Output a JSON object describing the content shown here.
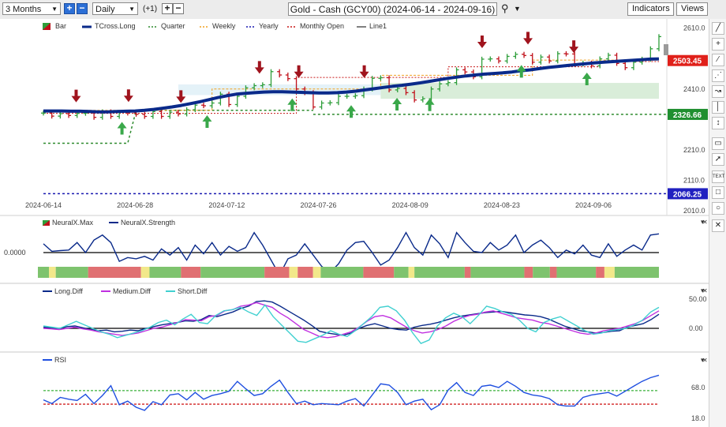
{
  "toolbar": {
    "range_select": "3 Months",
    "interval_select": "Daily",
    "offset_label": "(+1)",
    "title": "Gold - Cash (GCY00) (2024-06-14 - 2024-09-16)",
    "indicators_label": "Indicators",
    "views_label": "Views"
  },
  "colors": {
    "up": "#2e9e3a",
    "down": "#c0101a",
    "tcross": "#0a2a8a",
    "quarter": "#2e8b2e",
    "weekly": "#f0a020",
    "yearly": "#1818b0",
    "monthly_open": "#c81818",
    "line1": "#555555",
    "rsi": "#1f4fe0",
    "long_diff": "#0a2a8a",
    "medium_diff": "#c030e0",
    "short_diff": "#40d0d0"
  },
  "main_legend": [
    "Bar",
    "TCross.Long",
    "Quarter",
    "Weekly",
    "Yearly",
    "Monthly Open",
    "Line1"
  ],
  "neural_legend": [
    "NeuralX.Max",
    "NeuralX.Strength"
  ],
  "diff_legend": [
    "Long.Diff",
    "Medium.Diff",
    "Short.Diff"
  ],
  "rsi_legend": [
    "RSI"
  ],
  "price_badges": {
    "current": "2503.45",
    "support": "2326.66",
    "yearly": "2066.25"
  },
  "neural_zero_label": "0.0000",
  "chart_data": [
    {
      "type": "line",
      "name": "main",
      "title": "Gold - Cash (GCY00) (2024-06-14 - 2024-09-16)",
      "x_ticks": [
        "2024-06-14",
        "2024-06-28",
        "2024-07-12",
        "2024-07-26",
        "2024-08-09",
        "2024-08-23",
        "2024-09-06"
      ],
      "y_ticks": [
        2010.0,
        2110.0,
        2210.0,
        2410.0,
        2610.0
      ],
      "ylim": [
        2000,
        2640
      ],
      "close": [
        2331,
        2321,
        2329,
        2323,
        2330,
        2331,
        2317,
        2335,
        2320,
        2333,
        2331,
        2327,
        2320,
        2336,
        2320,
        2334,
        2328,
        2342,
        2357,
        2355,
        2364,
        2393,
        2359,
        2386,
        2414,
        2421,
        2424,
        2467,
        2456,
        2444,
        2410,
        2398,
        2351,
        2364,
        2365,
        2386,
        2386,
        2388,
        2410,
        2445,
        2447,
        2407,
        2412,
        2398,
        2374,
        2378,
        2410,
        2427,
        2431,
        2473,
        2466,
        2450,
        2508,
        2509,
        2502,
        2517,
        2524,
        2520,
        2498,
        2515,
        2502,
        2526,
        2525,
        2492,
        2495,
        2486,
        2509,
        2521,
        2494,
        2480,
        2498,
        2508,
        2542,
        2582
      ],
      "tcross_long": [
        2338,
        2338,
        2338,
        2337,
        2337,
        2336,
        2335,
        2335,
        2336,
        2337,
        2338,
        2340,
        2343,
        2347,
        2351,
        2356,
        2362,
        2368,
        2375,
        2382,
        2388,
        2393,
        2396,
        2398,
        2400,
        2401,
        2401,
        2400,
        2399,
        2398,
        2397,
        2397,
        2398,
        2400,
        2403,
        2407,
        2411,
        2415,
        2419,
        2422,
        2426,
        2430,
        2435,
        2440,
        2445,
        2449,
        2453,
        2456,
        2459,
        2461,
        2463,
        2466,
        2470,
        2473,
        2477,
        2481,
        2484,
        2487,
        2490,
        2493,
        2496,
        2498,
        2500,
        2502,
        2504,
        2506,
        2508,
        2509
      ],
      "quarter_level": 2326.66,
      "yearly_level": 2066.25,
      "last_price": 2503.45,
      "up_arrow_dates": [
        "2024-06-26",
        "2024-07-09",
        "2024-07-22",
        "2024-07-31",
        "2024-08-07",
        "2024-08-12",
        "2024-08-26",
        "2024-09-05"
      ],
      "down_arrow_dates": [
        "2024-06-19",
        "2024-06-27",
        "2024-07-05",
        "2024-07-17",
        "2024-07-23",
        "2024-08-02",
        "2024-08-20",
        "2024-08-27",
        "2024-09-03"
      ]
    },
    {
      "type": "line",
      "name": "NeuralX.Strength",
      "values": [
        0.35,
        0.05,
        0.08,
        0.1,
        0.4,
        0.0,
        0.5,
        0.7,
        0.4,
        -0.35,
        -0.2,
        -0.25,
        -0.15,
        -0.3,
        0.15,
        -0.1,
        0.2,
        -0.3,
        0.3,
        -0.05,
        0.4,
        -0.1,
        0.25,
        0.05,
        0.2,
        0.8,
        0.3,
        -0.3,
        -0.9,
        -0.25,
        -0.1,
        0.35,
        -0.1,
        -0.55,
        -0.8,
        -0.45,
        0.1,
        0.4,
        0.45,
        0.0,
        -0.5,
        -0.3,
        0.2,
        0.8,
        0.2,
        -0.1,
        0.7,
        0.35,
        -0.2,
        0.8,
        0.4,
        0.05,
        0.0,
        0.4,
        0.1,
        0.3,
        0.7,
        0.0,
        0.3,
        0.5,
        0.2,
        -0.2,
        0.1,
        -0.05,
        0.3,
        -0.1,
        -0.2,
        0.35,
        -0.15,
        0.1,
        0.3,
        0.1,
        0.7,
        0.75
      ],
      "bands": [
        "green",
        "yellow",
        "green",
        "red",
        "yellow",
        "green",
        "red",
        "green",
        "red",
        "yellow",
        "red",
        "yellow",
        "green",
        "red",
        "green",
        "yellow",
        "green",
        "red",
        "green",
        "red",
        "green",
        "red",
        "green",
        "red",
        "yellow",
        "green"
      ],
      "band_widths": [
        13,
        8,
        38,
        62,
        10,
        37,
        23,
        75,
        29,
        10,
        18,
        9,
        50,
        36,
        17,
        7,
        59,
        7,
        63,
        10,
        20,
        8,
        46,
        10,
        12,
        52
      ]
    },
    {
      "type": "line",
      "name": "diffs",
      "yticks": [
        0.0,
        50.0
      ],
      "series": [
        {
          "name": "Long.Diff",
          "values": [
            2,
            1,
            0,
            3,
            4,
            1,
            -2,
            -4,
            -3,
            -6,
            -5,
            -3,
            -4,
            0,
            3,
            6,
            8,
            10,
            13,
            12,
            15,
            22,
            20,
            24,
            28,
            34,
            38,
            46,
            47,
            45,
            38,
            30,
            22,
            14,
            5,
            -5,
            -8,
            -10,
            -12,
            -8,
            0,
            5,
            8,
            4,
            0,
            -2,
            -3,
            2,
            5,
            7,
            10,
            14,
            18,
            21,
            23,
            25,
            27,
            28,
            29,
            27,
            25,
            23,
            22,
            20,
            16,
            10,
            4,
            0,
            -4,
            -6,
            -8,
            -7,
            -5,
            -4,
            2,
            5,
            8,
            15,
            24
          ]
        },
        {
          "name": "Medium.Diff",
          "values": [
            0,
            -1,
            -2,
            0,
            2,
            -1,
            -3,
            -6,
            -8,
            -10,
            -12,
            -10,
            -8,
            -4,
            0,
            2,
            6,
            10,
            15,
            14,
            13,
            20,
            22,
            30,
            32,
            38,
            40,
            44,
            40,
            36,
            26,
            18,
            8,
            -2,
            -8,
            -14,
            -16,
            -14,
            -10,
            -6,
            2,
            12,
            20,
            22,
            18,
            10,
            2,
            -4,
            -8,
            -6,
            -2,
            4,
            12,
            18,
            22,
            24,
            28,
            30,
            26,
            22,
            18,
            16,
            14,
            10,
            8,
            4,
            0,
            -4,
            -8,
            -10,
            -8,
            -4,
            -2,
            0,
            4,
            8,
            14,
            22,
            30
          ]
        },
        {
          "name": "Short.Diff",
          "values": [
            4,
            2,
            0,
            6,
            12,
            6,
            0,
            -6,
            -10,
            -16,
            -12,
            -8,
            -4,
            2,
            10,
            14,
            6,
            16,
            24,
            10,
            8,
            22,
            30,
            32,
            36,
            28,
            22,
            40,
            20,
            6,
            -8,
            -22,
            -24,
            -18,
            -12,
            -4,
            -10,
            -14,
            -4,
            8,
            20,
            36,
            38,
            30,
            14,
            -8,
            -26,
            -20,
            4,
            18,
            26,
            20,
            8,
            22,
            38,
            34,
            28,
            24,
            14,
            0,
            -6,
            10,
            16,
            20,
            12,
            4,
            -4,
            -10,
            -8,
            -4,
            -2,
            0,
            6,
            14,
            28,
            36
          ]
        }
      ]
    },
    {
      "type": "line",
      "name": "RSI",
      "yticks": [
        18.0,
        68.0
      ],
      "upper_band": 63,
      "lower_band": 41,
      "values": [
        48,
        42,
        52,
        49,
        47,
        57,
        42,
        55,
        71,
        40,
        46,
        36,
        31,
        45,
        40,
        56,
        58,
        48,
        60,
        49,
        55,
        58,
        62,
        78,
        66,
        55,
        58,
        70,
        80,
        60,
        42,
        46,
        40,
        42,
        41,
        40,
        46,
        50,
        38,
        56,
        74,
        72,
        60,
        40,
        46,
        49,
        32,
        40,
        64,
        76,
        60,
        55,
        70,
        72,
        68,
        78,
        70,
        60,
        56,
        54,
        50,
        40,
        38,
        38,
        52,
        56,
        58,
        60,
        54,
        62,
        70,
        78,
        84,
        88
      ]
    }
  ]
}
